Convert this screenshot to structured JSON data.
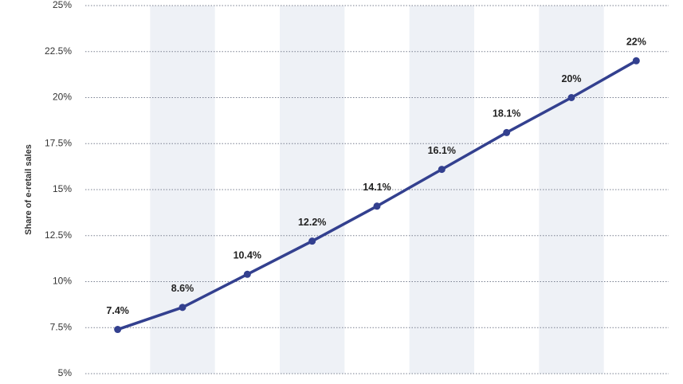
{
  "chart_data": {
    "type": "line",
    "y_label": "Share of e-retail sales",
    "categories": [
      null,
      null,
      null,
      null,
      null,
      null,
      null,
      null,
      null
    ],
    "values": [
      7.4,
      8.6,
      10.4,
      12.2,
      14.1,
      16.1,
      18.1,
      20,
      22
    ],
    "value_labels": [
      "7.4%",
      "8.6%",
      "10.4%",
      "12.2%",
      "14.1%",
      "16.1%",
      "18.1%",
      "20%",
      "22%"
    ],
    "color": "#33408f",
    "ylim": [
      5,
      25
    ],
    "yticks": [
      {
        "value": 5,
        "label": "5%"
      },
      {
        "value": 7.5,
        "label": "7.5%"
      },
      {
        "value": 10,
        "label": "10%"
      },
      {
        "value": 12.5,
        "label": "12.5%"
      },
      {
        "value": 15,
        "label": "15%"
      },
      {
        "value": 17.5,
        "label": "17.5%"
      },
      {
        "value": 20,
        "label": "20%"
      },
      {
        "value": 22.5,
        "label": "22.5%"
      },
      {
        "value": 25,
        "label": "25%"
      }
    ],
    "grid": true
  }
}
